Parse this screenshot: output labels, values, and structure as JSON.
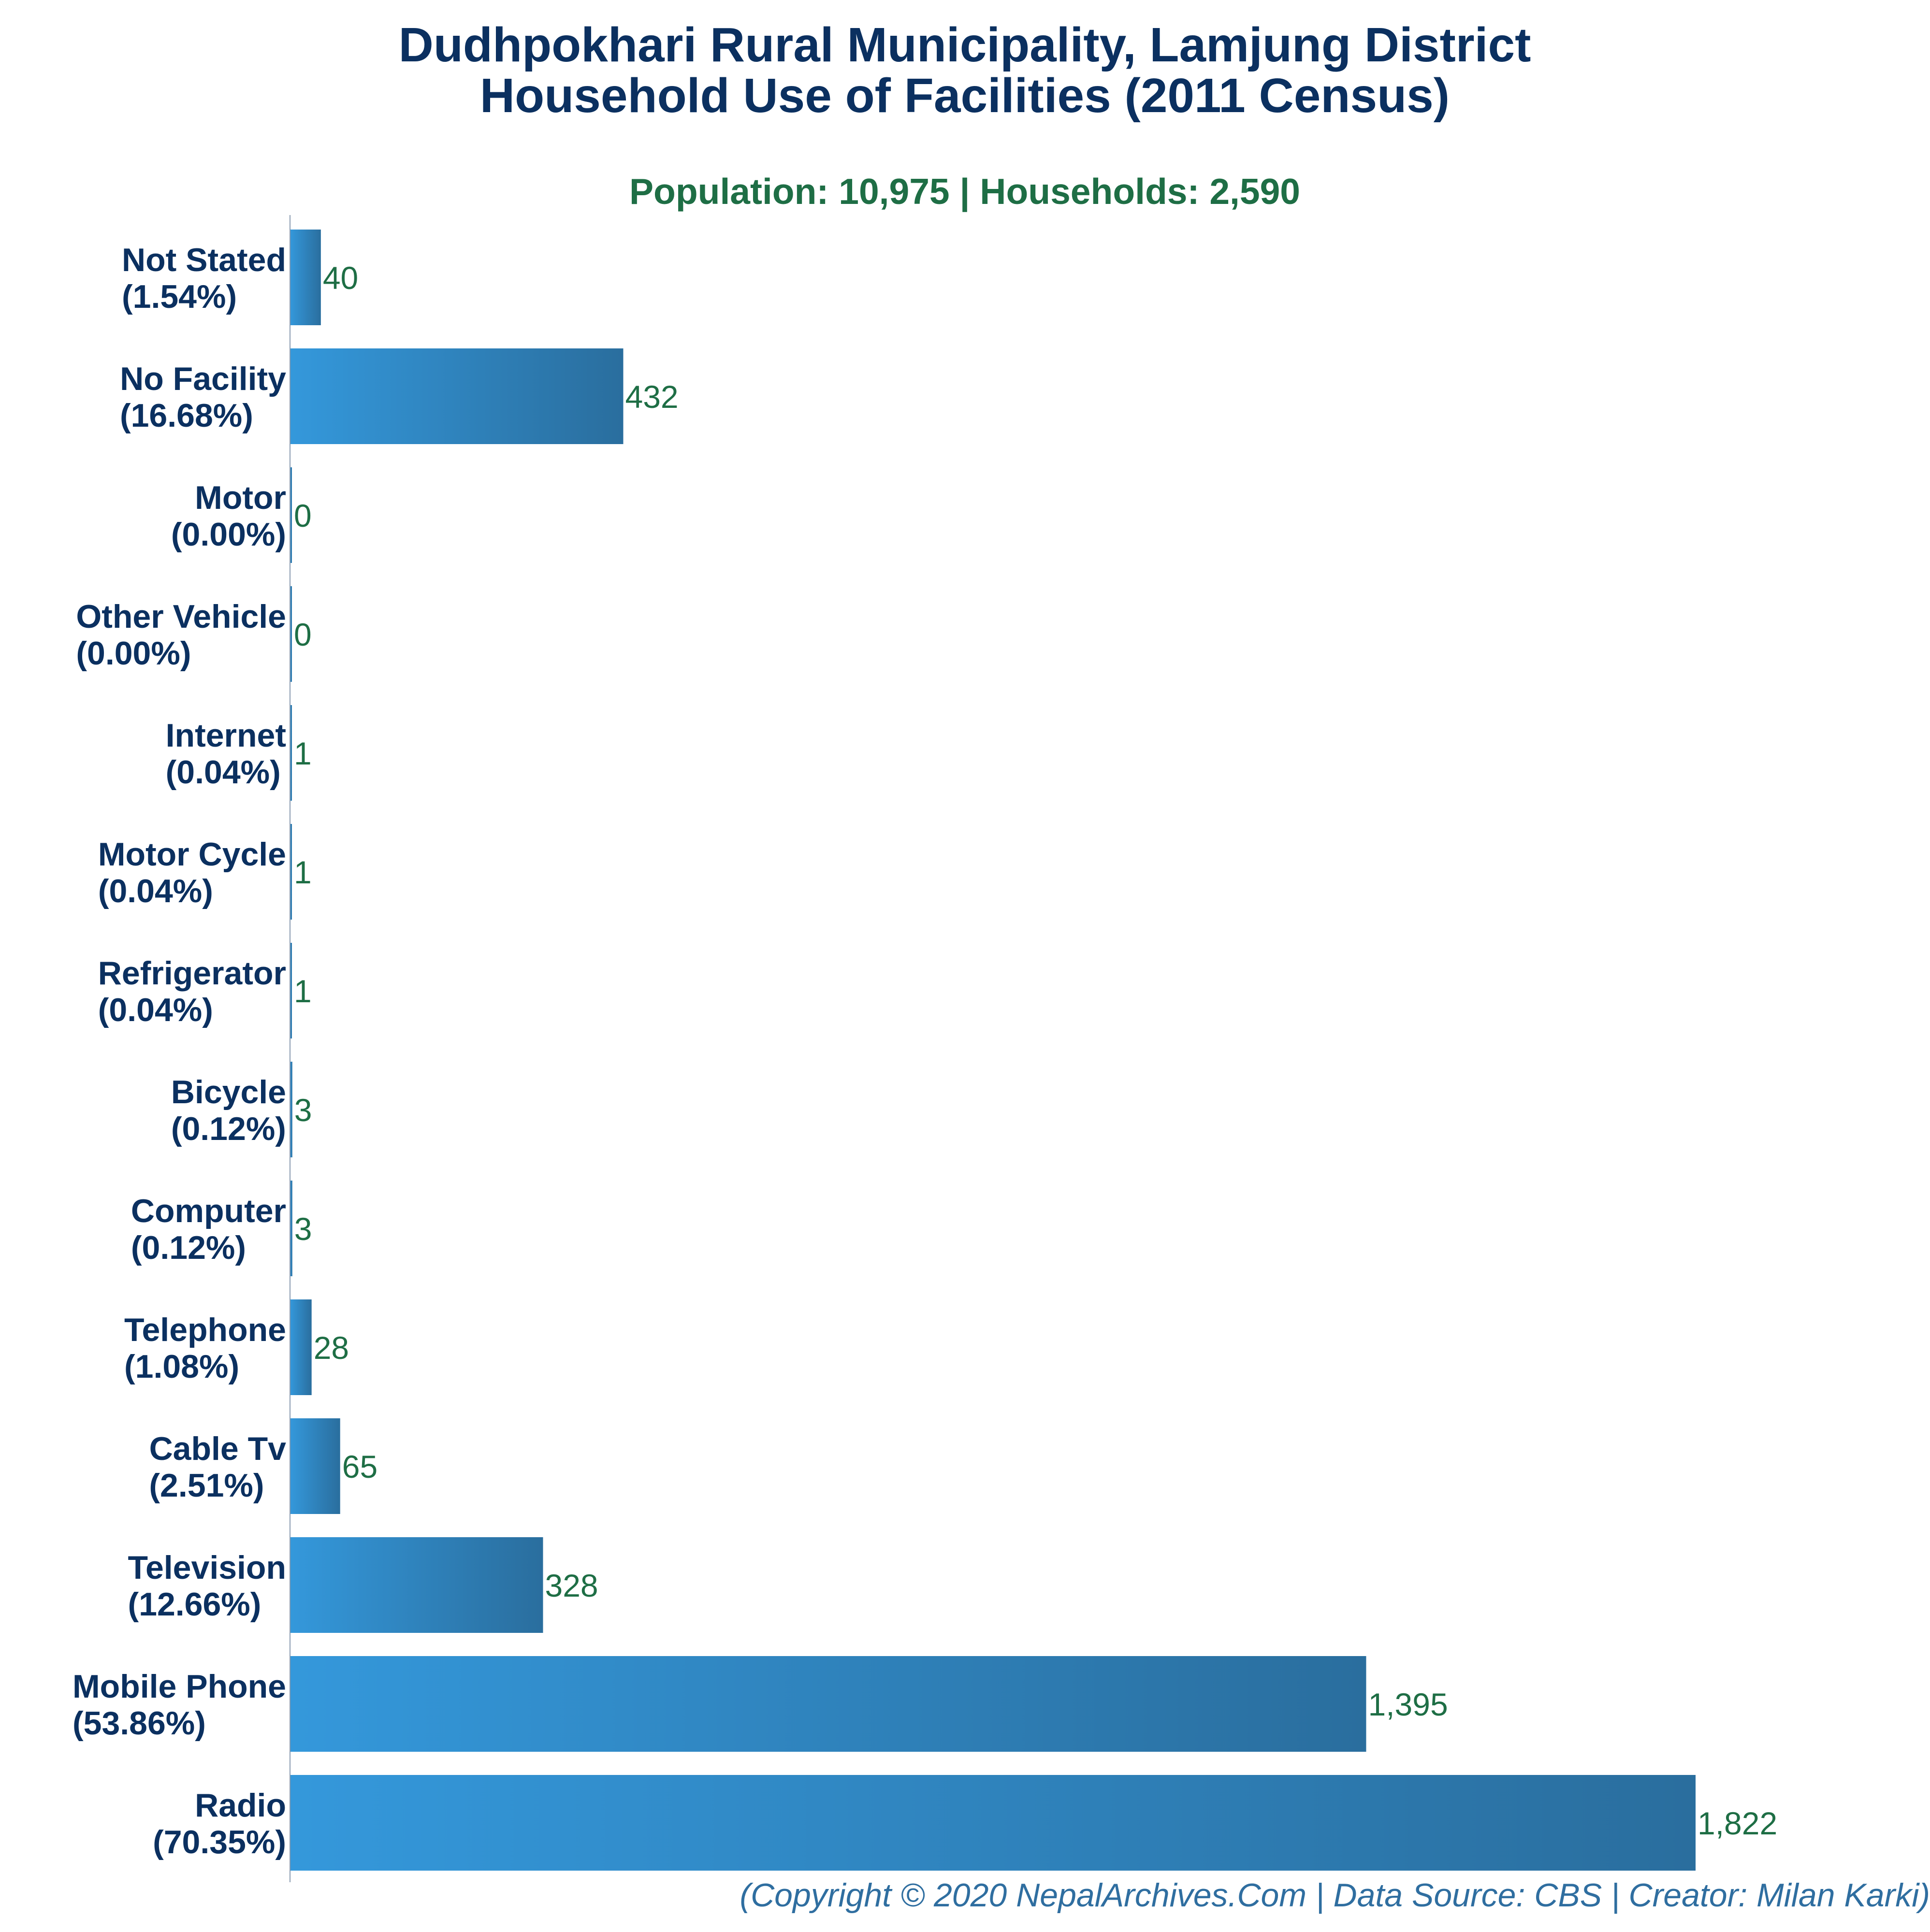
{
  "chart_data": {
    "type": "bar",
    "orientation": "horizontal",
    "title": [
      "Dudhpokhari Rural Municipality, Lamjung District",
      "Household Use of Facilities (2011 Census)"
    ],
    "subtitle": "Population: 10,975 | Households: 2,590",
    "footer": "(Copyright © 2020 NepalArchives.Com | Data Source: CBS | Creator: Milan Karki)",
    "xlim": [
      0,
      1822
    ],
    "grid": false,
    "legend": "none",
    "colors": {
      "bar_light": "#3498db",
      "bar_dark": "#2a6e9e",
      "title": "#0b3060",
      "subtitle": "#1e6e45",
      "value_label": "#1e6e45",
      "footer": "#2f6ea0",
      "axis": "#8a9bb0"
    },
    "categories": [
      {
        "name": "Not Stated",
        "pct": "(1.54%)",
        "value": 40,
        "value_label": "40"
      },
      {
        "name": "No Facility",
        "pct": "(16.68%)",
        "value": 432,
        "value_label": "432"
      },
      {
        "name": "Motor",
        "pct": "(0.00%)",
        "value": 0,
        "value_label": "0"
      },
      {
        "name": "Other Vehicle",
        "pct": "(0.00%)",
        "value": 0,
        "value_label": "0"
      },
      {
        "name": "Internet",
        "pct": "(0.04%)",
        "value": 1,
        "value_label": "1"
      },
      {
        "name": "Motor Cycle",
        "pct": "(0.04%)",
        "value": 1,
        "value_label": "1"
      },
      {
        "name": "Refrigerator",
        "pct": "(0.04%)",
        "value": 1,
        "value_label": "1"
      },
      {
        "name": "Bicycle",
        "pct": "(0.12%)",
        "value": 3,
        "value_label": "3"
      },
      {
        "name": "Computer",
        "pct": "(0.12%)",
        "value": 3,
        "value_label": "3"
      },
      {
        "name": "Telephone",
        "pct": "(1.08%)",
        "value": 28,
        "value_label": "28"
      },
      {
        "name": "Cable Tv",
        "pct": "(2.51%)",
        "value": 65,
        "value_label": "65"
      },
      {
        "name": "Television",
        "pct": "(12.66%)",
        "value": 328,
        "value_label": "328"
      },
      {
        "name": "Mobile Phone",
        "pct": "(53.86%)",
        "value": 1395,
        "value_label": "1,395"
      },
      {
        "name": "Radio",
        "pct": "(70.35%)",
        "value": 1822,
        "value_label": "1,822"
      }
    ]
  }
}
